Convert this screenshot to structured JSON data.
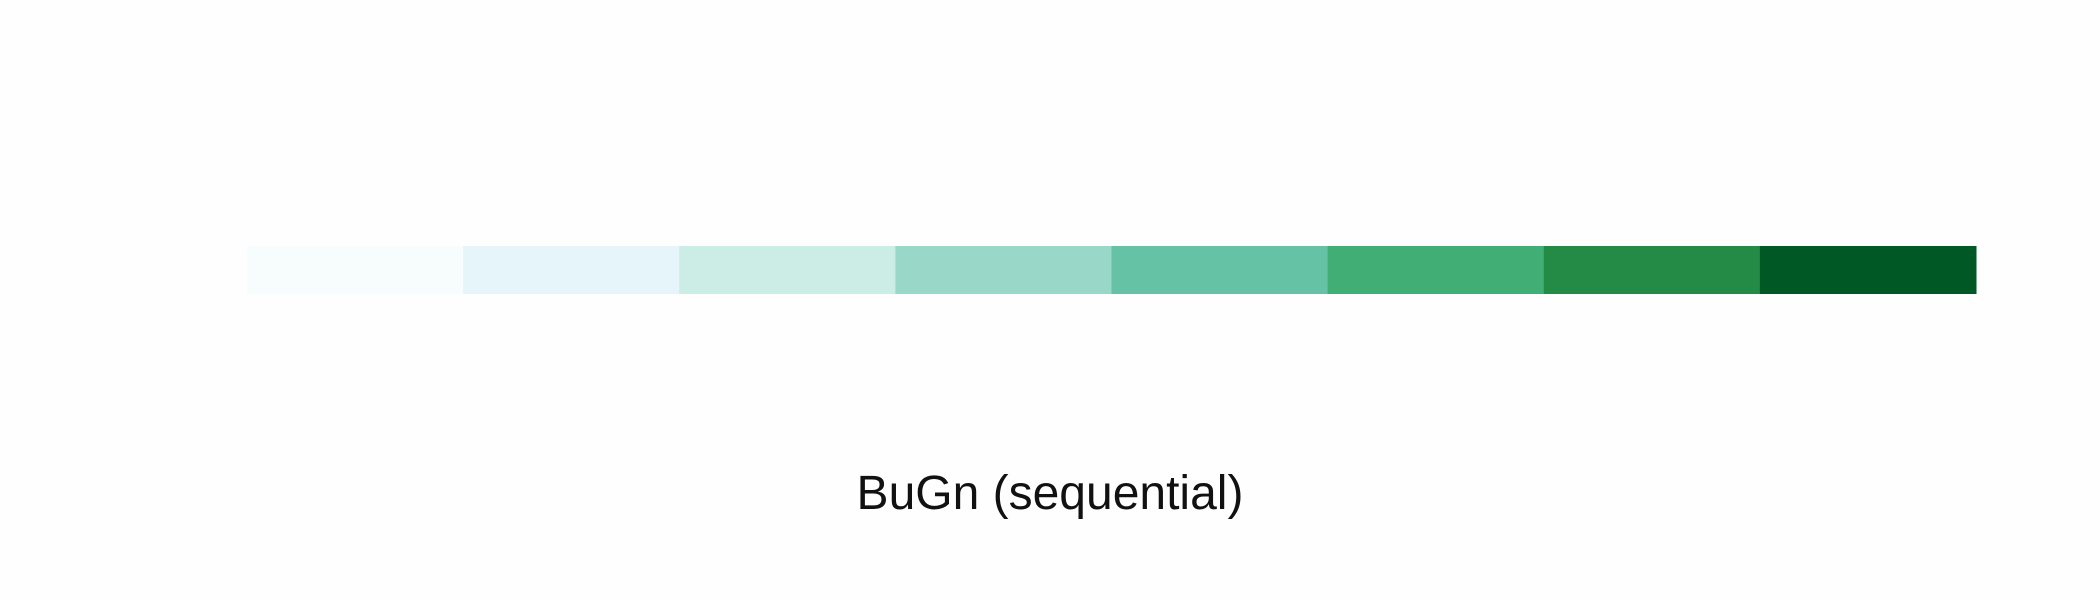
{
  "chart_data": {
    "type": "heatmap",
    "title": "BuGn (sequential)",
    "xlabel": "",
    "ylabel": "",
    "grid": false,
    "legend": "none",
    "colors": [
      "#f7fcfd",
      "#e5f5f9",
      "#ccece6",
      "#99d8c9",
      "#66c2a4",
      "#41ae76",
      "#238b45",
      "#005824"
    ]
  }
}
